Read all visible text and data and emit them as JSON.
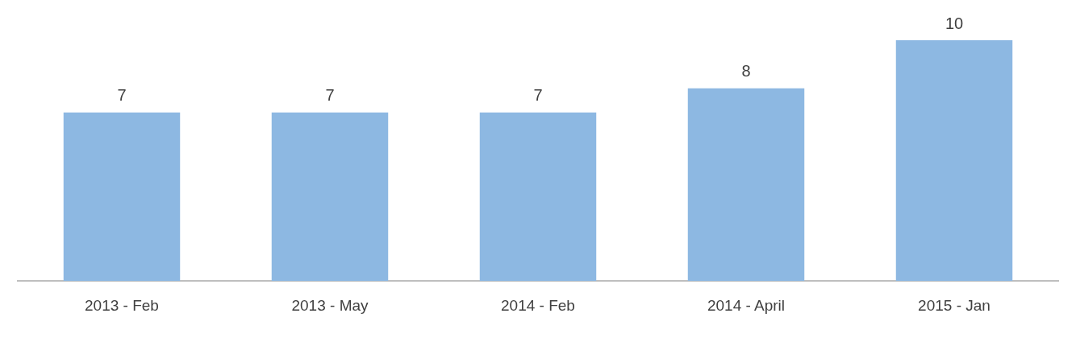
{
  "chart_data": {
    "type": "bar",
    "categories": [
      "2013 - Feb",
      "2013 - May",
      "2014 - Feb",
      "2014 - April",
      "2015 - Jan"
    ],
    "values": [
      7,
      7,
      7,
      8,
      10
    ],
    "color": "#8db8e2",
    "data_labels": true,
    "tick_labels": "x"
  }
}
